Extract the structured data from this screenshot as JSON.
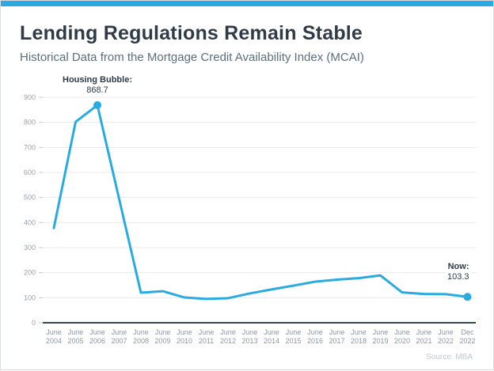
{
  "header": {
    "accent_color": "#29ABE2"
  },
  "chart_data": {
    "type": "line",
    "title": "Lending Regulations Remain Stable",
    "subtitle": "Historical Data from the Mortgage Credit Availability Index (MCAI)",
    "categories": [
      "June 2004",
      "June 2005",
      "June 2006",
      "June 2007",
      "June 2008",
      "June 2009",
      "June 2010",
      "June 2011",
      "June 2012",
      "June 2013",
      "June 2014",
      "June 2015",
      "June 2016",
      "June 2017",
      "June 2018",
      "June 2019",
      "June 2020",
      "June 2021",
      "June 2022",
      "Dec 2022"
    ],
    "values": [
      378,
      802,
      868.7,
      494,
      120,
      126,
      101,
      95,
      98,
      117,
      133,
      148,
      164,
      172,
      178,
      189,
      121,
      115,
      114,
      103.3
    ],
    "ylim": [
      0,
      900
    ],
    "ytick_step": 100,
    "line_color": "#29ABE2",
    "grid": true,
    "legend_position": "none",
    "annotations": [
      {
        "label": "Housing Bubble:",
        "value": "868.7",
        "point": "June 2006",
        "align": "center"
      },
      {
        "label": "Now:",
        "value": "103.3",
        "point": "Dec 2022",
        "align": "right"
      }
    ],
    "marker_points": [
      "June 2006",
      "Dec 2022"
    ]
  },
  "footer": {
    "source": "Source: MBA"
  }
}
